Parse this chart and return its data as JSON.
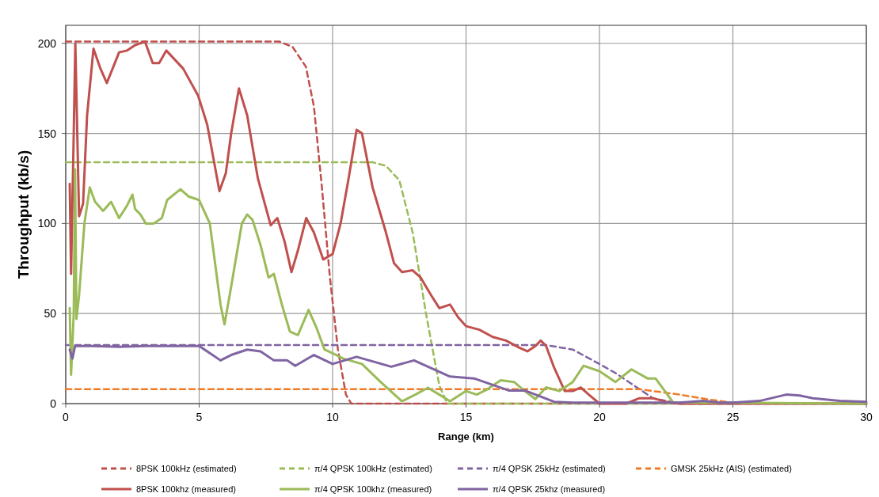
{
  "chart_data": {
    "type": "line",
    "xlabel": "Range (km)",
    "ylabel": "Throughput (kb/s)",
    "xlim": [
      0,
      30
    ],
    "xticks": [
      0,
      5,
      10,
      15,
      20,
      25,
      30
    ],
    "ylim": [
      0,
      210
    ],
    "yticks": [
      0,
      50,
      100,
      150,
      200
    ],
    "grid": true,
    "legend": "bottom",
    "series": [
      {
        "name": "8PSK 100kHz (estimated)",
        "color": "#c0504d",
        "line_style": "dashed",
        "x": [
          0,
          8,
          8.5,
          9,
          9.3,
          9.6,
          9.9,
          10.2,
          10.5,
          10.7,
          30
        ],
        "values": [
          201,
          201,
          198,
          187,
          165,
          120,
          70,
          30,
          5,
          0,
          0
        ]
      },
      {
        "name": "π/4 QPSK 100kHz (estimated)",
        "color": "#9bbb59",
        "line_style": "dashed",
        "x": [
          0,
          11.5,
          12,
          12.5,
          13,
          13.5,
          14,
          14.3,
          30
        ],
        "values": [
          134,
          134,
          132,
          124,
          95,
          50,
          10,
          0,
          0
        ]
      },
      {
        "name": "π/4 QPSK 25kHz (estimated)",
        "color": "#8064a2",
        "line_style": "dashed",
        "x": [
          0,
          18,
          19,
          20,
          20.6,
          21.2,
          22,
          23,
          30
        ],
        "values": [
          32.5,
          32.5,
          30,
          22,
          17,
          11,
          3,
          0,
          0
        ]
      },
      {
        "name": "GMSK 25kHz (AIS) (estimated)",
        "color": "#f07c28",
        "line_style": "dashed",
        "x": [
          0,
          21.5,
          22,
          23,
          24,
          25,
          30
        ],
        "values": [
          8,
          8,
          7,
          5,
          2.5,
          0.5,
          0
        ]
      },
      {
        "name": "8PSK 100khz (measured)",
        "color": "#c0504d",
        "line_style": "solid",
        "x": [
          0.15,
          0.2,
          0.3,
          0.36,
          0.5,
          0.65,
          0.8,
          1.04,
          1.3,
          1.54,
          2,
          2.3,
          2.6,
          2.97,
          3.26,
          3.5,
          3.77,
          4.4,
          4.96,
          5.3,
          5.76,
          6,
          6.2,
          6.49,
          6.8,
          7.2,
          7.68,
          7.93,
          8.2,
          8.46,
          8.7,
          9.01,
          9.3,
          9.65,
          10,
          10.3,
          10.6,
          10.9,
          11.1,
          11.5,
          12,
          12.3,
          12.6,
          13,
          13.3,
          13.7,
          14,
          14.4,
          14.7,
          15,
          15.5,
          16,
          16.5,
          17,
          17.3,
          17.6,
          17.8,
          18,
          18.3,
          18.7,
          19,
          19.3,
          19.6,
          20,
          21,
          21.5,
          22,
          22.5,
          23,
          30
        ],
        "values": [
          122,
          72,
          150,
          200,
          104,
          111,
          160,
          197,
          186,
          178,
          195,
          196,
          199,
          201,
          189,
          189,
          196,
          186,
          171,
          155,
          118,
          128,
          150,
          175,
          160,
          125,
          99,
          103,
          90,
          73,
          85,
          103,
          95,
          80,
          83,
          100,
          125,
          152,
          150,
          120,
          95,
          78,
          73,
          74,
          70,
          60,
          53,
          55,
          48,
          43,
          41,
          37,
          35,
          31,
          29,
          32,
          35,
          32,
          20,
          7,
          7,
          9,
          5,
          0,
          0,
          3,
          3,
          1,
          0,
          0
        ]
      },
      {
        "name": "π/4 QPSK 100khz (measured)",
        "color": "#9bbb59",
        "line_style": "solid",
        "x": [
          0.15,
          0.2,
          0.3,
          0.35,
          0.4,
          0.5,
          0.7,
          0.9,
          1.1,
          1.4,
          1.7,
          2,
          2.3,
          2.5,
          2.6,
          2.8,
          3,
          3.3,
          3.6,
          3.8,
          4.3,
          4.6,
          5,
          5.4,
          5.8,
          5.95,
          6.2,
          6.6,
          6.8,
          7,
          7.3,
          7.6,
          7.8,
          8.1,
          8.4,
          8.7,
          9.1,
          9.4,
          9.7,
          10,
          10.4,
          11.1,
          11.8,
          12.6,
          13.1,
          13.57,
          14,
          14.4,
          15,
          15.4,
          15.8,
          16.3,
          16.8,
          17.2,
          17.6,
          18,
          18.5,
          19,
          19.4,
          20,
          20.6,
          21.2,
          21.8,
          22.1,
          22.76,
          30
        ],
        "values": [
          53,
          16,
          50,
          130,
          47,
          60,
          100,
          120,
          112,
          107,
          112,
          103,
          110,
          116,
          108,
          105,
          100,
          100,
          103,
          113,
          119,
          115,
          113,
          100,
          55,
          44,
          65,
          100,
          105,
          102,
          88,
          70,
          72,
          55,
          40,
          38,
          52,
          42,
          30,
          28,
          25,
          22,
          12,
          1.3,
          5,
          8.8,
          5,
          1.3,
          7,
          5,
          8,
          13,
          12,
          7,
          2.5,
          9,
          7,
          12,
          21,
          18,
          12,
          19,
          14,
          14,
          0.7,
          0
        ]
      },
      {
        "name": "π/4 QPSK 25khz (measured)",
        "color": "#8064a2",
        "line_style": "solid",
        "x": [
          0.15,
          0.25,
          0.35,
          1,
          2,
          3,
          4,
          5,
          5.5,
          5.8,
          6.2,
          6.8,
          7.3,
          7.8,
          8.3,
          8.6,
          9.3,
          10,
          10.9,
          12.2,
          13.05,
          14.4,
          15.3,
          16.6,
          17.2,
          18.3,
          19,
          20,
          21,
          22,
          23,
          23.9,
          24.5,
          25,
          26,
          27,
          27.5,
          28,
          29,
          30
        ],
        "values": [
          30,
          25,
          32,
          32,
          31.5,
          32,
          32,
          32,
          27,
          24,
          27,
          30,
          29,
          24,
          24,
          21,
          27,
          22,
          26,
          20.5,
          24,
          15,
          14,
          7.3,
          7.3,
          1,
          0.5,
          0.5,
          0.5,
          0.5,
          0.5,
          1.5,
          0.5,
          0.5,
          1.5,
          5,
          4.5,
          3,
          1.5,
          1
        ]
      }
    ]
  }
}
